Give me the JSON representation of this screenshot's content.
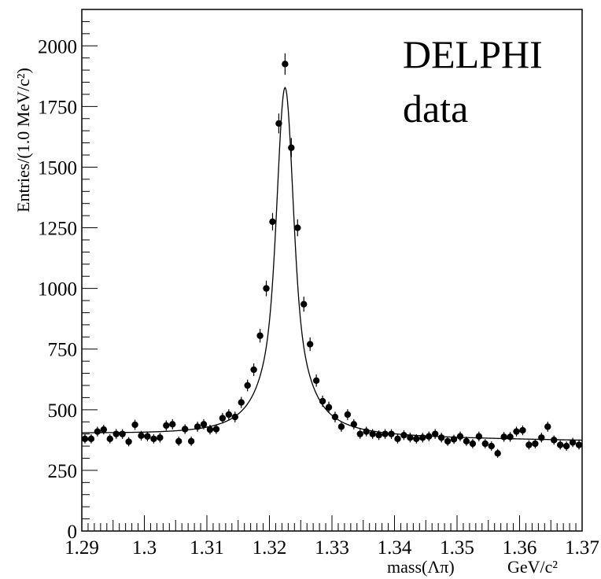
{
  "chart_data": {
    "type": "scatter",
    "annotations": [
      "DELPHI",
      "data"
    ],
    "xlabel": "mass(Λπ)",
    "xunit": "GeV/c²",
    "ylabel": "Entries/(1.0 MeV/c²)",
    "xlim": [
      1.29,
      1.37
    ],
    "ylim": [
      0,
      2150
    ],
    "x_ticks": [
      1.29,
      1.3,
      1.31,
      1.32,
      1.33,
      1.34,
      1.35,
      1.36,
      1.37
    ],
    "x_tick_labels": [
      "1.29",
      "1.3",
      "1.31",
      "1.32",
      "1.33",
      "1.34",
      "1.35",
      "1.36",
      "1.37"
    ],
    "y_ticks": [
      0,
      250,
      500,
      750,
      1000,
      1250,
      1500,
      1750,
      2000
    ],
    "y_tick_labels": [
      "0",
      "250",
      "500",
      "750",
      "1000",
      "1250",
      "1500",
      "1750",
      "2000"
    ],
    "grid": false,
    "legend": "none",
    "series": [
      {
        "type": "points-with-errors",
        "x": [
          1.2905,
          1.2915,
          1.2925,
          1.2935,
          1.2945,
          1.2955,
          1.2965,
          1.2975,
          1.2985,
          1.2995,
          1.3005,
          1.3015,
          1.3025,
          1.3035,
          1.3045,
          1.3055,
          1.3065,
          1.3075,
          1.3085,
          1.3095,
          1.3105,
          1.3115,
          1.3125,
          1.3135,
          1.3145,
          1.3155,
          1.3165,
          1.3175,
          1.3185,
          1.3195,
          1.3205,
          1.3215,
          1.3225,
          1.3235,
          1.3245,
          1.3255,
          1.3265,
          1.3275,
          1.3285,
          1.3295,
          1.3305,
          1.3315,
          1.3325,
          1.3335,
          1.3345,
          1.3355,
          1.3365,
          1.3375,
          1.3385,
          1.3395,
          1.3405,
          1.3415,
          1.3425,
          1.3435,
          1.3445,
          1.3455,
          1.3465,
          1.3475,
          1.3485,
          1.3495,
          1.3505,
          1.3515,
          1.3525,
          1.3535,
          1.3545,
          1.3555,
          1.3565,
          1.3575,
          1.3585,
          1.3595,
          1.3605,
          1.3615,
          1.3625,
          1.3635,
          1.3645,
          1.3655,
          1.3665,
          1.3675,
          1.3685,
          1.3695
        ],
        "y": [
          380,
          380,
          410,
          418,
          380,
          400,
          400,
          368,
          438,
          393,
          390,
          380,
          385,
          435,
          440,
          370,
          420,
          370,
          430,
          440,
          418,
          420,
          465,
          480,
          470,
          530,
          600,
          665,
          805,
          1000,
          1275,
          1680,
          1925,
          1580,
          1250,
          935,
          770,
          620,
          535,
          510,
          470,
          430,
          480,
          440,
          400,
          410,
          400,
          395,
          400,
          400,
          380,
          395,
          385,
          380,
          385,
          390,
          400,
          385,
          370,
          378,
          390,
          370,
          360,
          390,
          360,
          350,
          320,
          388,
          388,
          410,
          415,
          355,
          360,
          385,
          430,
          375,
          355,
          350,
          365,
          355
        ],
        "yerr": [
          19,
          19,
          20,
          20,
          19,
          20,
          20,
          19,
          21,
          20,
          20,
          19,
          20,
          21,
          21,
          19,
          20,
          19,
          21,
          21,
          20,
          20,
          22,
          22,
          22,
          23,
          24,
          26,
          28,
          32,
          36,
          41,
          44,
          40,
          35,
          31,
          28,
          25,
          23,
          23,
          22,
          21,
          22,
          21,
          20,
          20,
          20,
          20,
          20,
          20,
          19,
          20,
          20,
          19,
          20,
          20,
          20,
          20,
          19,
          19,
          20,
          19,
          19,
          20,
          19,
          19,
          18,
          20,
          20,
          20,
          20,
          19,
          19,
          20,
          21,
          19,
          19,
          19,
          19,
          19
        ]
      },
      {
        "type": "fit-curve",
        "model": "voigt-like peak on linear background",
        "peak_x": 1.3225,
        "peak_y": 1828,
        "background": [
          [
            1.29,
            400
          ],
          [
            1.37,
            372
          ]
        ]
      }
    ]
  }
}
